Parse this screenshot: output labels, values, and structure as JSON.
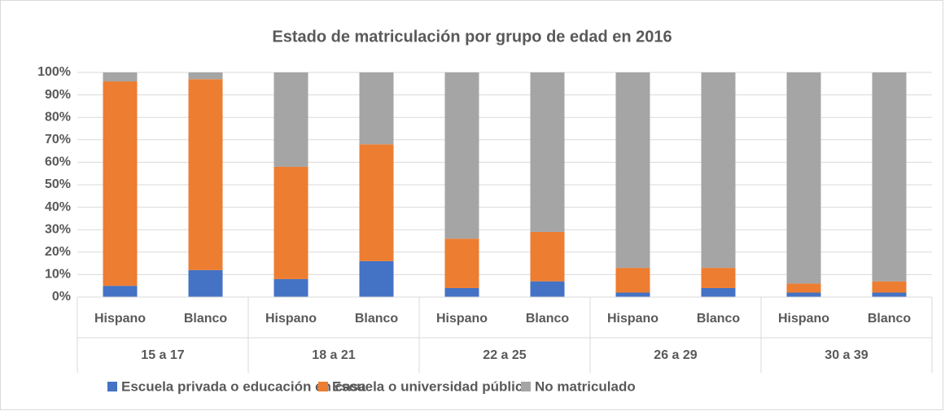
{
  "chart_data": {
    "type": "stacked_bar",
    "title": "Estado de matriculación por grupo de edad en 2016",
    "categories": [
      "Hispano",
      "Blanco",
      "Hispano",
      "Blanco",
      "Hispano",
      "Blanco",
      "Hispano",
      "Blanco",
      "Hispano",
      "Blanco"
    ],
    "groups": [
      "15 a 17",
      "18 a 21",
      "22 a 25",
      "26 a 29",
      "30 a 39"
    ],
    "series": [
      {
        "name": "Escuela privada o educación en casa",
        "color": "#4472c4",
        "values": [
          5,
          12,
          8,
          16,
          4,
          7,
          2,
          4,
          2,
          2
        ]
      },
      {
        "name": "Escuela o universidad pública",
        "color": "#ed7d31",
        "values": [
          91,
          85,
          50,
          52,
          22,
          22,
          11,
          9,
          4,
          5
        ]
      },
      {
        "name": "No matriculado",
        "color": "#a5a5a5",
        "values": [
          4,
          3,
          42,
          32,
          74,
          71,
          87,
          87,
          94,
          93
        ]
      }
    ],
    "ylim": [
      0,
      100
    ],
    "yticks": [
      {
        "value": 0,
        "label": "0%"
      },
      {
        "value": 10,
        "label": "10%"
      },
      {
        "value": 20,
        "label": "20%"
      },
      {
        "value": 30,
        "label": "30%"
      },
      {
        "value": 40,
        "label": "40%"
      },
      {
        "value": 50,
        "label": "50%"
      },
      {
        "value": 60,
        "label": "60%"
      },
      {
        "value": 70,
        "label": "70%"
      },
      {
        "value": 80,
        "label": "80%"
      },
      {
        "value": 90,
        "label": "90%"
      },
      {
        "value": 100,
        "label": "100%"
      }
    ],
    "grid": true,
    "legend": "bottom"
  }
}
